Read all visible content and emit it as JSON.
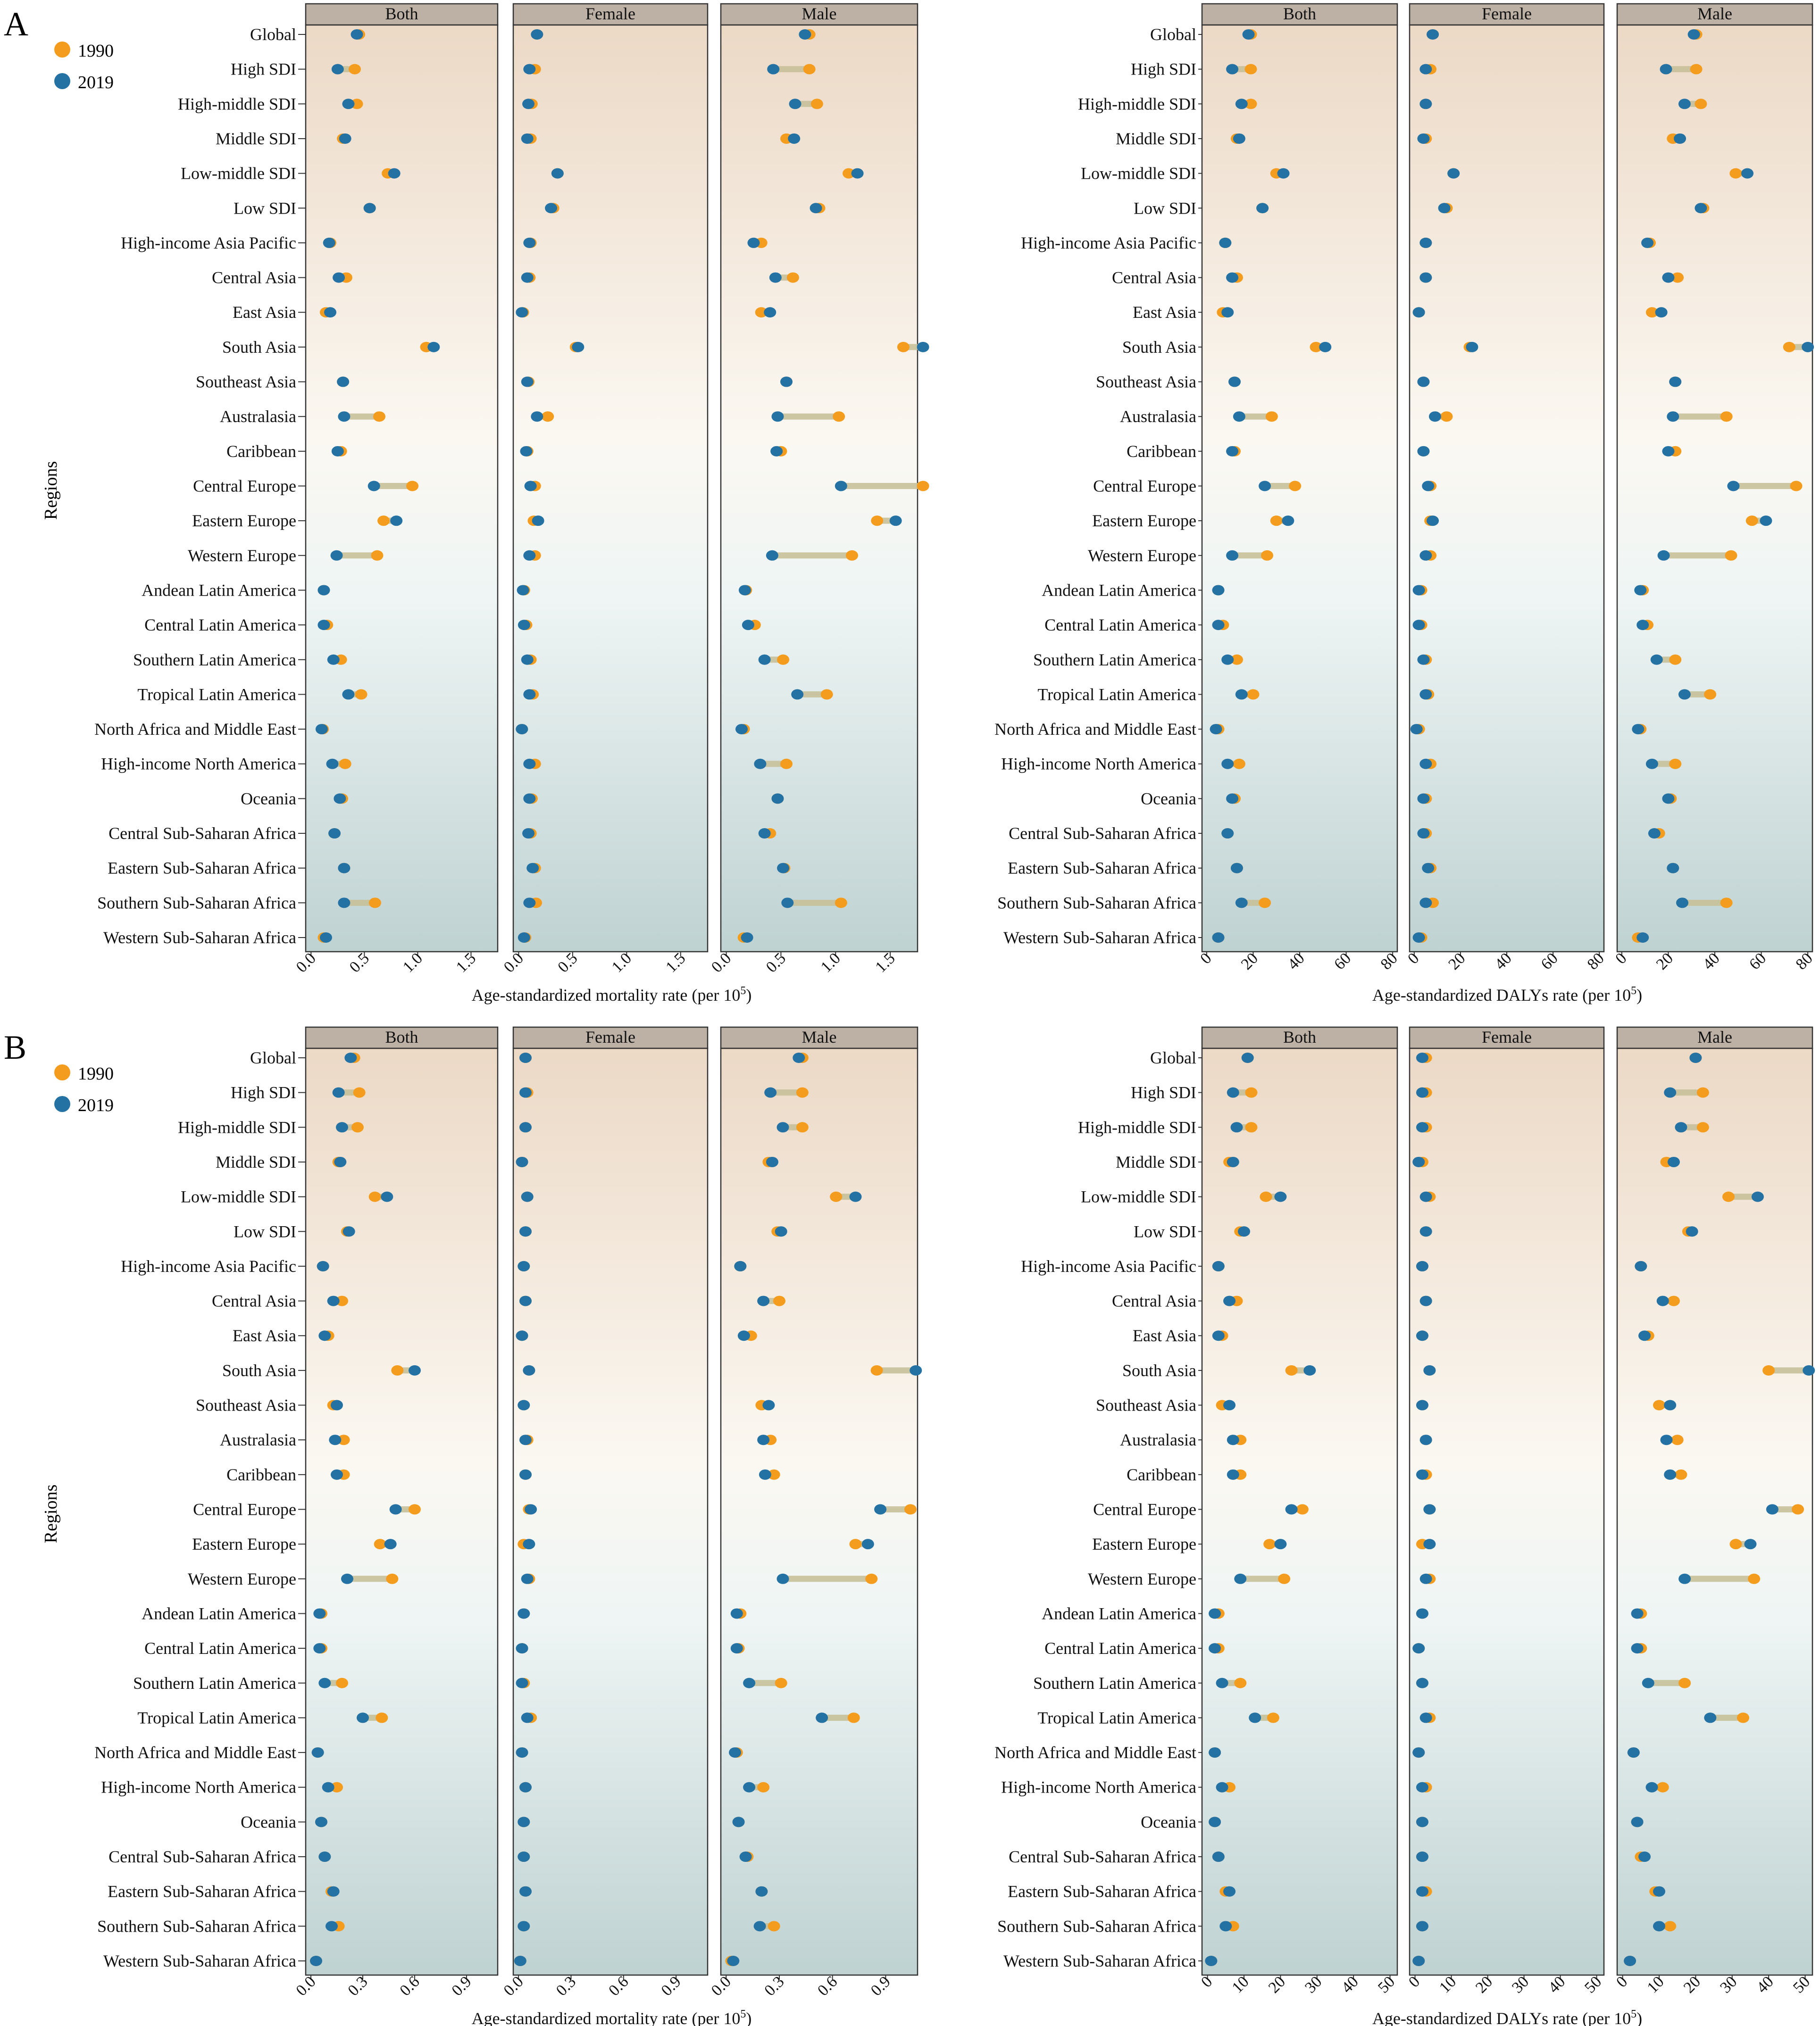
{
  "figure": {
    "panel_letters": [
      "A",
      "B"
    ],
    "legend": [
      {
        "label": "1990",
        "color": "#F39C1E"
      },
      {
        "label": "2019",
        "color": "#2471A3"
      }
    ],
    "y_axis_title": "Regions",
    "facets": [
      "Both",
      "Female",
      "Male"
    ],
    "colors": {
      "c1990": "#F39C1E",
      "c2019": "#2471A3",
      "segment": "#C8C19A",
      "strip_fill": "#BDB1A6",
      "frame": "#333333",
      "bg_top": "#ECD9C6",
      "bg_mid": "#FBF8F2",
      "bg_bottom": "#BFD2D2"
    }
  },
  "chart_data": [
    {
      "id": "A-mortality",
      "panel": "A",
      "type": "dumbbell",
      "xlabel": "Age-standardized mortality rate (per 10",
      "xlabel_sup": "5",
      "xlabel_tail": ")",
      "xlim": [
        -0.05,
        1.75
      ],
      "ticks": [
        0.0,
        0.5,
        1.0,
        1.5
      ],
      "tick_labels": [
        "0.0",
        "0.5",
        "1.0",
        "1.5"
      ],
      "regions": [
        "Global",
        "High SDI",
        "High-middle SDI",
        "Middle SDI",
        "Low-middle SDI",
        "Low SDI",
        "High-income Asia Pacific",
        "Central Asia",
        "East Asia",
        "South Asia",
        "Southeast Asia",
        "Australasia",
        "Caribbean",
        "Central Europe",
        "Eastern Europe",
        "Western Europe",
        "Andean Latin America",
        "Central Latin America",
        "Southern Latin America",
        "Tropical Latin America",
        "North Africa and Middle East",
        "High-income North America",
        "Oceania",
        "Central Sub-Saharan Africa",
        "Eastern Sub-Saharan Africa",
        "Southern Sub-Saharan Africa",
        "Western Sub-Saharan Africa"
      ],
      "series": {
        "Both": {
          "1990": [
            0.45,
            0.41,
            0.43,
            0.3,
            0.72,
            0.55,
            0.18,
            0.33,
            0.14,
            1.08,
            0.3,
            0.64,
            0.28,
            0.95,
            0.68,
            0.62,
            0.12,
            0.15,
            0.28,
            0.47,
            0.11,
            0.32,
            0.29,
            0.22,
            0.31,
            0.6,
            0.12
          ],
          "2019": [
            0.43,
            0.25,
            0.35,
            0.32,
            0.78,
            0.55,
            0.17,
            0.26,
            0.18,
            1.15,
            0.3,
            0.31,
            0.25,
            0.59,
            0.8,
            0.24,
            0.12,
            0.12,
            0.21,
            0.35,
            0.1,
            0.2,
            0.27,
            0.22,
            0.31,
            0.31,
            0.14
          ]
        },
        "Female": {
          "1990": [
            0.17,
            0.15,
            0.12,
            0.11,
            0.36,
            0.32,
            0.11,
            0.1,
            0.04,
            0.53,
            0.09,
            0.27,
            0.08,
            0.15,
            0.14,
            0.15,
            0.05,
            0.07,
            0.11,
            0.13,
            0.03,
            0.15,
            0.12,
            0.11,
            0.15,
            0.16,
            0.06
          ],
          "2019": [
            0.17,
            0.1,
            0.09,
            0.08,
            0.36,
            0.3,
            0.1,
            0.08,
            0.03,
            0.55,
            0.08,
            0.17,
            0.07,
            0.11,
            0.18,
            0.1,
            0.04,
            0.05,
            0.08,
            0.1,
            0.03,
            0.1,
            0.1,
            0.09,
            0.13,
            0.1,
            0.05
          ],
          "comment": ""
        },
        "Male": {
          "1990": [
            0.76,
            0.76,
            0.83,
            0.55,
            1.12,
            0.85,
            0.32,
            0.61,
            0.32,
            1.62,
            0.55,
            1.03,
            0.5,
            1.8,
            1.38,
            1.15,
            0.18,
            0.26,
            0.52,
            0.92,
            0.16,
            0.55,
            0.47,
            0.4,
            0.53,
            1.05,
            0.16
          ],
          "2019": [
            0.72,
            0.43,
            0.63,
            0.62,
            1.2,
            0.82,
            0.25,
            0.45,
            0.4,
            1.8,
            0.55,
            0.47,
            0.46,
            1.05,
            1.55,
            0.42,
            0.17,
            0.2,
            0.35,
            0.65,
            0.14,
            0.31,
            0.47,
            0.35,
            0.52,
            0.56,
            0.19
          ]
        }
      }
    },
    {
      "id": "A-dalys",
      "panel": "A",
      "type": "dumbbell",
      "xlabel": "Age-standardized DALYs rate (per 10",
      "xlabel_sup": "5",
      "xlabel_tail": ")",
      "xlim": [
        -2,
        82
      ],
      "ticks": [
        0,
        20,
        40,
        60,
        80
      ],
      "tick_labels": [
        "0",
        "20",
        "40",
        "60",
        "80"
      ],
      "regions": [
        "Global",
        "High SDI",
        "High-middle SDI",
        "Middle SDI",
        "Low-middle SDI",
        "Low SDI",
        "High-income Asia Pacific",
        "Central Asia",
        "East Asia",
        "South Asia",
        "Southeast Asia",
        "Australasia",
        "Caribbean",
        "Central Europe",
        "Eastern Europe",
        "Western Europe",
        "Andean Latin America",
        "Central Latin America",
        "Southern Latin America",
        "Tropical Latin America",
        "North Africa and Middle East",
        "High-income North America",
        "Oceania",
        "Central Sub-Saharan Africa",
        "Eastern Sub-Saharan Africa",
        "Southern Sub-Saharan Africa",
        "Western Sub-Saharan Africa"
      ],
      "series": {
        "Both": {
          "1990": [
            19,
            19,
            19,
            13,
            30,
            24,
            8,
            13,
            7,
            47,
            12,
            28,
            12,
            38,
            30,
            26,
            5,
            7,
            13,
            20,
            5,
            14,
            12,
            9,
            13,
            25,
            5
          ],
          "2019": [
            18,
            11,
            15,
            14,
            33,
            24,
            8,
            11,
            9,
            51,
            12,
            14,
            11,
            25,
            35,
            11,
            5,
            5,
            9,
            15,
            4,
            9,
            11,
            9,
            13,
            15,
            5
          ],
          "comment": ""
        },
        "Female": {
          "1990": [
            8,
            7,
            5,
            5,
            17,
            14,
            5,
            5,
            2,
            24,
            4,
            14,
            4,
            7,
            7,
            7,
            3,
            3,
            5,
            6,
            2,
            7,
            5,
            5,
            7,
            8,
            3
          ],
          "2019": [
            8,
            5,
            5,
            4,
            17,
            13,
            5,
            5,
            2,
            25,
            4,
            9,
            4,
            6,
            8,
            5,
            2,
            2,
            4,
            5,
            1,
            5,
            4,
            4,
            6,
            5,
            2
          ]
        },
        "Male": {
          "1990": [
            32,
            32,
            34,
            22,
            49,
            35,
            12,
            24,
            13,
            72,
            23,
            45,
            23,
            75,
            56,
            47,
            9,
            11,
            23,
            38,
            8,
            23,
            21,
            16,
            22,
            45,
            7
          ],
          "2019": [
            31,
            19,
            27,
            25,
            54,
            34,
            11,
            20,
            17,
            80,
            23,
            22,
            20,
            48,
            62,
            18,
            8,
            9,
            15,
            27,
            7,
            13,
            20,
            14,
            22,
            26,
            9
          ]
        }
      }
    },
    {
      "id": "B-mortality",
      "panel": "B",
      "type": "dumbbell",
      "xlabel": "Age-standardized mortality rate (per 10",
      "xlabel_sup": "5",
      "xlabel_tail": ")",
      "xlim": [
        -0.03,
        1.08
      ],
      "ticks": [
        0.0,
        0.3,
        0.6,
        0.9
      ],
      "tick_labels": [
        "0.0",
        "0.3",
        "0.6",
        "0.9"
      ],
      "regions": [
        "Global",
        "High SDI",
        "High-middle SDI",
        "Middle SDI",
        "Low-middle SDI",
        "Low SDI",
        "High-income Asia Pacific",
        "Central Asia",
        "East Asia",
        "South Asia",
        "Southeast Asia",
        "Australasia",
        "Caribbean",
        "Central Europe",
        "Eastern Europe",
        "Western Europe",
        "Andean Latin America",
        "Central Latin America",
        "Southern Latin America",
        "Tropical Latin America",
        "North Africa and Middle East",
        "High-income North America",
        "Oceania",
        "Central Sub-Saharan Africa",
        "Eastern Sub-Saharan Africa",
        "Southern Sub-Saharan Africa",
        "Western Sub-Saharan Africa"
      ],
      "series": {
        "Both": {
          "1990": [
            0.25,
            0.28,
            0.27,
            0.16,
            0.37,
            0.21,
            0.07,
            0.18,
            0.1,
            0.5,
            0.13,
            0.19,
            0.19,
            0.6,
            0.4,
            0.47,
            0.06,
            0.06,
            0.18,
            0.41,
            0.04,
            0.15,
            0.06,
            0.08,
            0.12,
            0.16,
            0.03
          ],
          "2019": [
            0.23,
            0.16,
            0.18,
            0.17,
            0.44,
            0.22,
            0.07,
            0.13,
            0.08,
            0.6,
            0.15,
            0.14,
            0.15,
            0.49,
            0.46,
            0.21,
            0.05,
            0.05,
            0.08,
            0.3,
            0.04,
            0.1,
            0.06,
            0.08,
            0.13,
            0.12,
            0.03
          ]
        },
        "Female": {
          "1990": [
            0.04,
            0.05,
            0.04,
            0.02,
            0.05,
            0.04,
            0.03,
            0.04,
            0.02,
            0.06,
            0.03,
            0.05,
            0.04,
            0.06,
            0.03,
            0.06,
            0.03,
            0.02,
            0.03,
            0.07,
            0.02,
            0.04,
            0.03,
            0.03,
            0.04,
            0.03,
            0.01
          ],
          "2019": [
            0.04,
            0.04,
            0.04,
            0.02,
            0.05,
            0.04,
            0.03,
            0.04,
            0.02,
            0.06,
            0.03,
            0.04,
            0.04,
            0.07,
            0.06,
            0.05,
            0.03,
            0.02,
            0.02,
            0.05,
            0.02,
            0.04,
            0.03,
            0.03,
            0.04,
            0.03,
            0.01
          ]
        },
        "Male": {
          "1990": [
            0.43,
            0.43,
            0.43,
            0.24,
            0.62,
            0.29,
            0.08,
            0.3,
            0.14,
            0.85,
            0.2,
            0.25,
            0.27,
            1.04,
            0.73,
            0.82,
            0.08,
            0.07,
            0.31,
            0.72,
            0.06,
            0.21,
            0.07,
            0.12,
            0.2,
            0.27,
            0.03
          ],
          "2019": [
            0.41,
            0.25,
            0.32,
            0.26,
            0.73,
            0.31,
            0.08,
            0.21,
            0.1,
            1.07,
            0.24,
            0.21,
            0.22,
            0.87,
            0.8,
            0.32,
            0.06,
            0.06,
            0.13,
            0.54,
            0.05,
            0.13,
            0.07,
            0.11,
            0.2,
            0.19,
            0.04
          ]
        }
      }
    },
    {
      "id": "B-dalys",
      "panel": "B",
      "type": "dumbbell",
      "xlabel": "Age-standardized DALYs rate (per 10",
      "xlabel_sup": "5",
      "xlabel_tail": ")",
      "xlim": [
        -1.5,
        52
      ],
      "ticks": [
        0,
        10,
        20,
        30,
        40,
        50
      ],
      "tick_labels": [
        "0",
        "10",
        "20",
        "30",
        "40",
        "50"
      ],
      "regions": [
        "Global",
        "High SDI",
        "High-middle SDI",
        "Middle SDI",
        "Low-middle SDI",
        "Low SDI",
        "High-income Asia Pacific",
        "Central Asia",
        "East Asia",
        "South Asia",
        "Southeast Asia",
        "Australasia",
        "Caribbean",
        "Central Europe",
        "Eastern Europe",
        "Western Europe",
        "Andean Latin America",
        "Central Latin America",
        "Southern Latin America",
        "Tropical Latin America",
        "North Africa and Middle East",
        "High-income North America",
        "Oceania",
        "Central Sub-Saharan Africa",
        "Eastern Sub-Saharan Africa",
        "Southern Sub-Saharan Africa",
        "Western Sub-Saharan Africa"
      ],
      "series": {
        "Both": {
          "1990": [
            11,
            12,
            12,
            6,
            16,
            9,
            3,
            8,
            4,
            23,
            4,
            9,
            9,
            26,
            17,
            21,
            3,
            3,
            9,
            18,
            2,
            6,
            2,
            3,
            5,
            7,
            1
          ],
          "2019": [
            11,
            7,
            8,
            7,
            20,
            10,
            3,
            6,
            3,
            28,
            6,
            7,
            7,
            23,
            20,
            9,
            2,
            2,
            4,
            13,
            2,
            4,
            2,
            3,
            6,
            5,
            1
          ]
        },
        "Female": {
          "1990": [
            3,
            3,
            3,
            2,
            4,
            3,
            2,
            3,
            2,
            4,
            2,
            3,
            3,
            4,
            2,
            4,
            2,
            1,
            2,
            4,
            1,
            3,
            2,
            2,
            3,
            2,
            1
          ],
          "2019": [
            2,
            2,
            2,
            1,
            3,
            3,
            2,
            3,
            2,
            4,
            2,
            3,
            2,
            4,
            4,
            3,
            2,
            1,
            2,
            3,
            1,
            2,
            2,
            2,
            2,
            2,
            1
          ]
        },
        "Male": {
          "1990": [
            20,
            22,
            22,
            12,
            29,
            18,
            5,
            14,
            7,
            40,
            10,
            15,
            16,
            48,
            31,
            36,
            5,
            5,
            17,
            33,
            3,
            11,
            4,
            5,
            9,
            13,
            2
          ],
          "2019": [
            20,
            13,
            16,
            14,
            37,
            19,
            5,
            11,
            6,
            51,
            13,
            12,
            13,
            41,
            35,
            17,
            4,
            4,
            7,
            24,
            3,
            8,
            4,
            6,
            10,
            10,
            2
          ]
        }
      }
    }
  ]
}
